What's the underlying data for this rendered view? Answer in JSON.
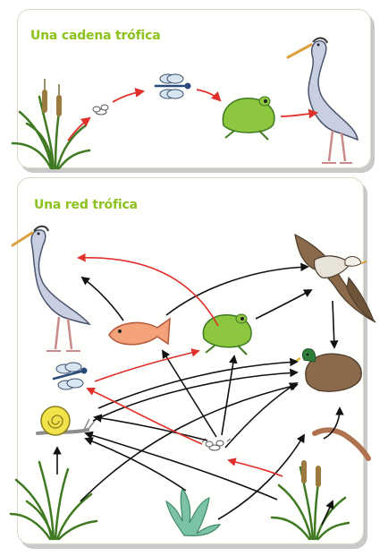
{
  "food_chain": {
    "title": "Una cadena trófica"
  },
  "food_web": {
    "title": "Una red trófica"
  },
  "colors": {
    "title_green": "#8cc21e",
    "producer_arrow": "#e0302b",
    "consumer_arrow": "#111111"
  },
  "organisms": [
    "reed-plant",
    "fly",
    "dragonfly",
    "frog",
    "heron",
    "eagle",
    "fish",
    "snail",
    "duck",
    "worm",
    "grass",
    "seaweed"
  ]
}
